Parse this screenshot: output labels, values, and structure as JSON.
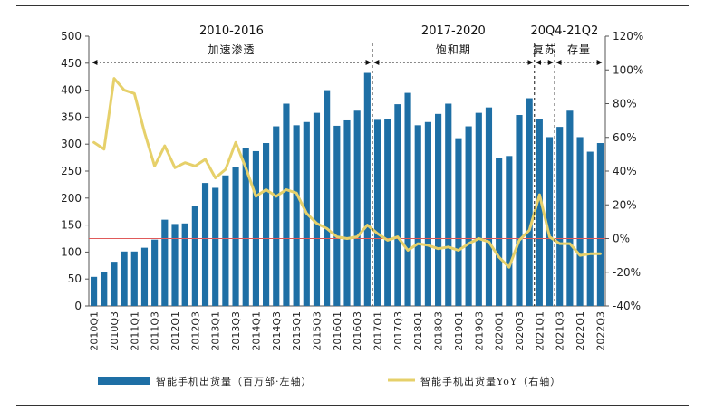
{
  "chart_data": {
    "type": "bar",
    "colors": {
      "bars": "#1E6FA5",
      "line": "#E6D06A",
      "zero_line": "#E05A5A",
      "axis": "#555555"
    },
    "categories": [
      "2010Q1",
      "2010Q2",
      "2010Q3",
      "2010Q4",
      "2011Q1",
      "2011Q2",
      "2011Q3",
      "2011Q4",
      "2012Q1",
      "2012Q2",
      "2012Q3",
      "2012Q4",
      "2013Q1",
      "2013Q2",
      "2013Q3",
      "2013Q4",
      "2014Q1",
      "2014Q2",
      "2014Q3",
      "2014Q4",
      "2015Q1",
      "2015Q2",
      "2015Q3",
      "2015Q4",
      "2016Q1",
      "2016Q2",
      "2016Q3",
      "2016Q4",
      "2017Q1",
      "2017Q2",
      "2017Q3",
      "2017Q4",
      "2018Q1",
      "2018Q2",
      "2018Q3",
      "2018Q4",
      "2019Q1",
      "2019Q2",
      "2019Q3",
      "2019Q4",
      "2020Q1",
      "2020Q2",
      "2020Q3",
      "2020Q4",
      "2021Q1",
      "2021Q2",
      "2021Q3",
      "2021Q4",
      "2022Q1",
      "2022Q2",
      "2022Q3"
    ],
    "xtick_labels": [
      "2010Q1",
      "2010Q3",
      "2011Q1",
      "2011Q3",
      "2012Q1",
      "2012Q3",
      "2013Q1",
      "2013Q3",
      "2014Q1",
      "2014Q3",
      "2015Q1",
      "2015Q3",
      "2016Q1",
      "2016Q3",
      "2017Q1",
      "2017Q3",
      "2018Q1",
      "2018Q3",
      "2019Q1",
      "2019Q3",
      "2020Q1",
      "2020Q3",
      "2021Q1",
      "2021Q3",
      "2022Q1",
      "2022Q3"
    ],
    "series": [
      {
        "name": "智能手机出货量（百万部·左轴）",
        "axis": "left",
        "kind": "bar",
        "values": [
          54,
          63,
          82,
          101,
          101,
          108,
          123,
          160,
          152,
          153,
          186,
          228,
          219,
          242,
          258,
          292,
          287,
          302,
          333,
          375,
          335,
          341,
          358,
          400,
          334,
          344,
          362,
          432,
          345,
          347,
          374,
          395,
          335,
          341,
          356,
          375,
          311,
          333,
          358,
          368,
          275,
          278,
          354,
          385,
          346,
          313,
          332,
          362,
          313,
          286,
          302
        ]
      },
      {
        "name": "智能手机出货量YoY（右轴）",
        "axis": "right",
        "kind": "line",
        "values": [
          57,
          53,
          95,
          88,
          86,
          63,
          43,
          55,
          42,
          45,
          43,
          47,
          36,
          41,
          57,
          42,
          25,
          29,
          25,
          29,
          27,
          15,
          9,
          6,
          1,
          0,
          1,
          8,
          3,
          -1,
          1,
          -7,
          -3,
          -4,
          -6,
          -5,
          -7,
          -3,
          0,
          -2,
          -11,
          -17,
          -1,
          5,
          26,
          1,
          -3,
          -3,
          -10,
          -9,
          -9
        ]
      }
    ],
    "y_left": {
      "min": 0,
      "max": 500,
      "ticks": [
        0,
        50,
        100,
        150,
        200,
        250,
        300,
        350,
        400,
        450,
        500
      ]
    },
    "y_right": {
      "min": -40,
      "max": 120,
      "ticks": [
        "-40%",
        "-20%",
        "0%",
        "20%",
        "40%",
        "60%",
        "80%",
        "100%",
        "120%"
      ]
    },
    "periods": [
      {
        "name": "2010-2016",
        "label": "加速渗透",
        "start": "2010Q1",
        "end": "2016Q4"
      },
      {
        "name": "2017-2020",
        "label": "饱和期",
        "start": "2017Q1",
        "end": "2020Q4"
      },
      {
        "name": "20Q4-21Q2",
        "label": "复苏",
        "start": "2021Q1",
        "end": "2021Q2"
      },
      {
        "name": "",
        "label": "存量",
        "start": "2021Q3",
        "end": "2022Q3"
      }
    ],
    "legend": {
      "bar": "智能手机出货量（百万部·左轴）",
      "line": "智能手机出货量YoY（右轴）",
      "position": "bottom"
    }
  }
}
